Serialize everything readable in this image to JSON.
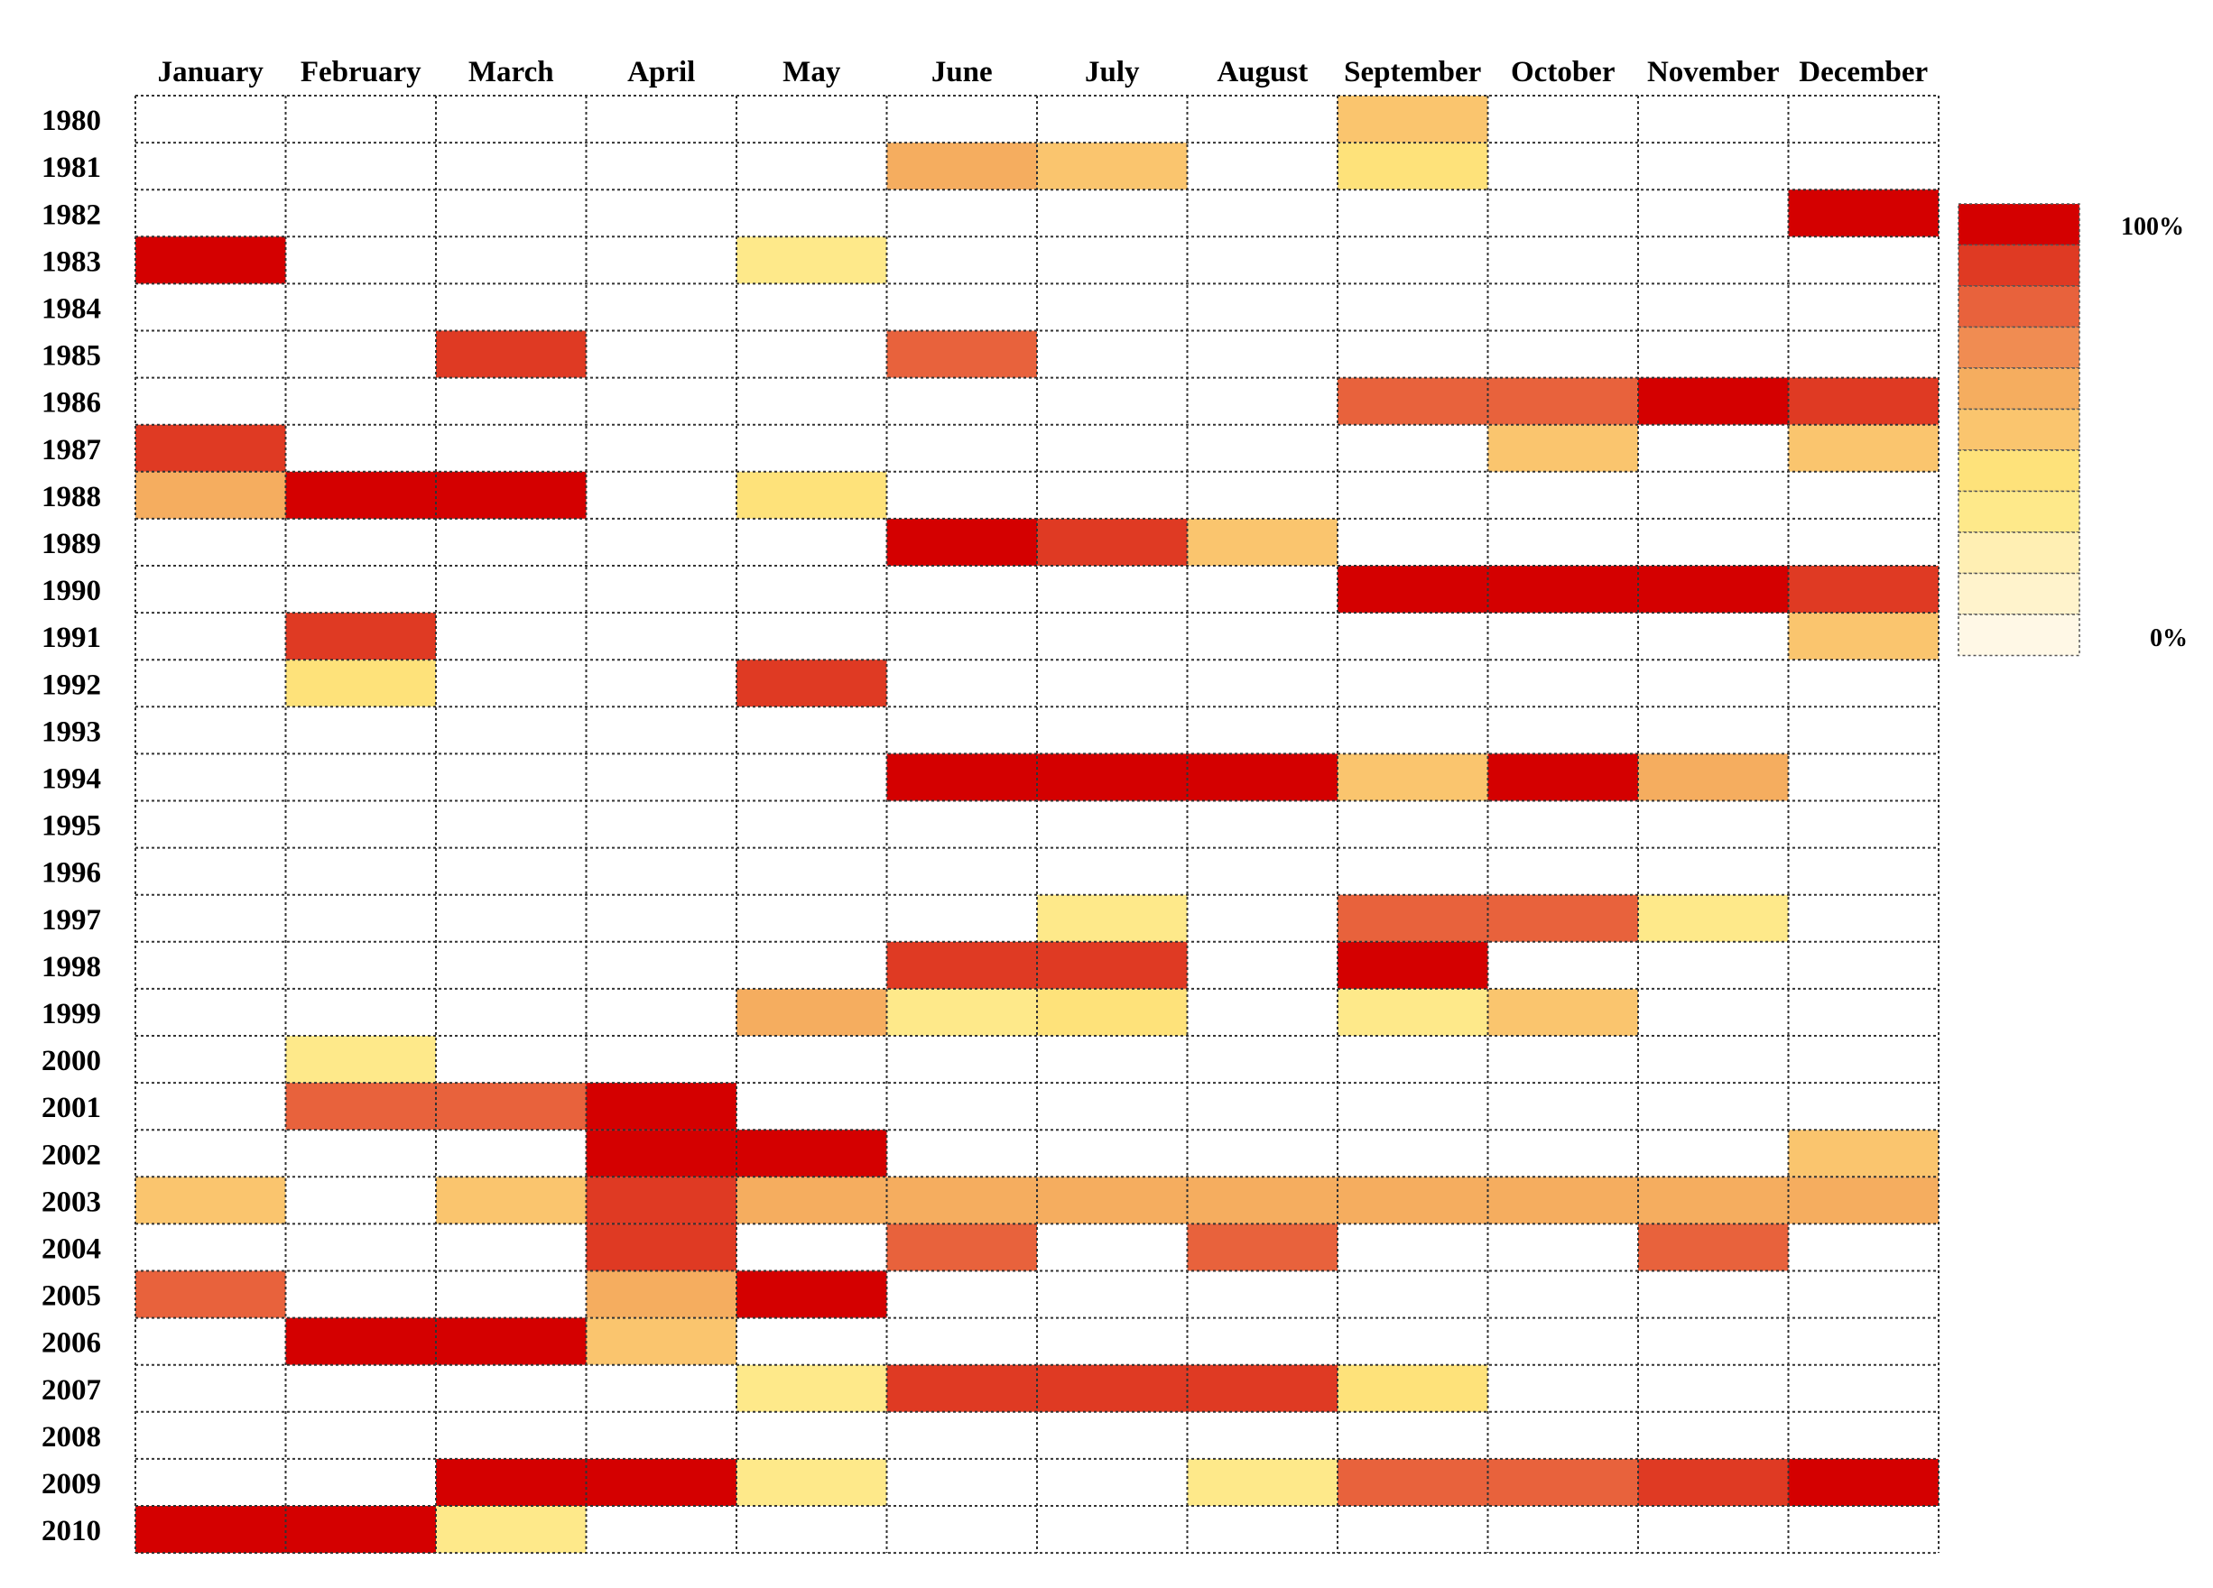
{
  "chart_data": {
    "type": "heatmap",
    "title": "",
    "xlabel": "",
    "ylabel": "",
    "x": [
      "January",
      "February",
      "March",
      "April",
      "May",
      "June",
      "July",
      "August",
      "September",
      "October",
      "November",
      "December"
    ],
    "y": [
      "1980",
      "1981",
      "1982",
      "1983",
      "1984",
      "1985",
      "1986",
      "1987",
      "1988",
      "1989",
      "1990",
      "1991",
      "1992",
      "1993",
      "1994",
      "1995",
      "1996",
      "1997",
      "1998",
      "1999",
      "2000",
      "2001",
      "2002",
      "2003",
      "2004",
      "2005",
      "2006",
      "2007",
      "2008",
      "2009",
      "2010"
    ],
    "values": [
      [
        0,
        0,
        0,
        0,
        0,
        0,
        0,
        0,
        50,
        0,
        0,
        0
      ],
      [
        0,
        0,
        0,
        0,
        0,
        60,
        50,
        0,
        45,
        0,
        0,
        0
      ],
      [
        0,
        0,
        0,
        0,
        0,
        0,
        0,
        0,
        0,
        0,
        0,
        100
      ],
      [
        100,
        0,
        0,
        0,
        35,
        0,
        0,
        0,
        0,
        0,
        0,
        0
      ],
      [
        0,
        0,
        0,
        0,
        0,
        0,
        0,
        0,
        0,
        0,
        0,
        0
      ],
      [
        0,
        0,
        90,
        0,
        0,
        80,
        0,
        0,
        0,
        0,
        0,
        0
      ],
      [
        0,
        0,
        0,
        0,
        0,
        0,
        0,
        0,
        80,
        80,
        100,
        90
      ],
      [
        90,
        0,
        0,
        0,
        0,
        0,
        0,
        0,
        0,
        55,
        0,
        55
      ],
      [
        60,
        100,
        100,
        0,
        45,
        0,
        0,
        0,
        0,
        0,
        0,
        0
      ],
      [
        0,
        0,
        0,
        0,
        0,
        100,
        95,
        55,
        0,
        0,
        0,
        0
      ],
      [
        0,
        0,
        0,
        0,
        0,
        0,
        0,
        0,
        100,
        100,
        100,
        95
      ],
      [
        0,
        95,
        0,
        0,
        0,
        0,
        0,
        0,
        0,
        0,
        0,
        55
      ],
      [
        0,
        45,
        0,
        0,
        90,
        0,
        0,
        0,
        0,
        0,
        0,
        0
      ],
      [
        0,
        0,
        0,
        0,
        0,
        0,
        0,
        0,
        0,
        0,
        0,
        0
      ],
      [
        0,
        0,
        0,
        0,
        0,
        100,
        100,
        100,
        55,
        100,
        60,
        0
      ],
      [
        0,
        0,
        0,
        0,
        0,
        0,
        0,
        0,
        0,
        0,
        0,
        0
      ],
      [
        0,
        0,
        0,
        0,
        0,
        0,
        0,
        0,
        0,
        0,
        0,
        0
      ],
      [
        0,
        0,
        0,
        0,
        0,
        0,
        40,
        0,
        80,
        85,
        35,
        0
      ],
      [
        0,
        0,
        0,
        0,
        0,
        95,
        95,
        0,
        100,
        0,
        0,
        0
      ],
      [
        0,
        0,
        0,
        0,
        60,
        40,
        45,
        0,
        40,
        50,
        0,
        0
      ],
      [
        0,
        40,
        0,
        0,
        0,
        0,
        0,
        0,
        0,
        0,
        0,
        0
      ],
      [
        0,
        80,
        85,
        100,
        0,
        0,
        0,
        0,
        0,
        0,
        0,
        0
      ],
      [
        0,
        0,
        0,
        100,
        100,
        0,
        0,
        0,
        0,
        0,
        0,
        50
      ],
      [
        50,
        0,
        50,
        95,
        60,
        60,
        60,
        60,
        60,
        60,
        60,
        60
      ],
      [
        0,
        0,
        0,
        90,
        0,
        80,
        0,
        80,
        0,
        0,
        80,
        0
      ],
      [
        80,
        0,
        0,
        65,
        100,
        0,
        0,
        0,
        0,
        0,
        0,
        0
      ],
      [
        0,
        100,
        100,
        50,
        0,
        0,
        0,
        0,
        0,
        0,
        0,
        0
      ],
      [
        0,
        0,
        0,
        0,
        40,
        90,
        88,
        88,
        45,
        0,
        0,
        0
      ],
      [
        0,
        0,
        0,
        0,
        0,
        0,
        0,
        0,
        0,
        0,
        0,
        0
      ],
      [
        0,
        0,
        100,
        100,
        40,
        0,
        0,
        35,
        85,
        85,
        88,
        100
      ],
      [
        100,
        100,
        35,
        0,
        0,
        0,
        0,
        0,
        0,
        0,
        0,
        0
      ]
    ],
    "range": [
      0,
      100
    ],
    "legend": {
      "position": "right",
      "max_label": "100%",
      "min_label": "0%"
    },
    "grid": true,
    "colors": [
      "#ffffff",
      "#fff8e6",
      "#fff3cc",
      "#ffefb3",
      "#fee98a",
      "#fee27a",
      "#fac56e",
      "#f5ad5f",
      "#f08c52",
      "#e8623c",
      "#df3a23",
      "#d40000"
    ]
  }
}
